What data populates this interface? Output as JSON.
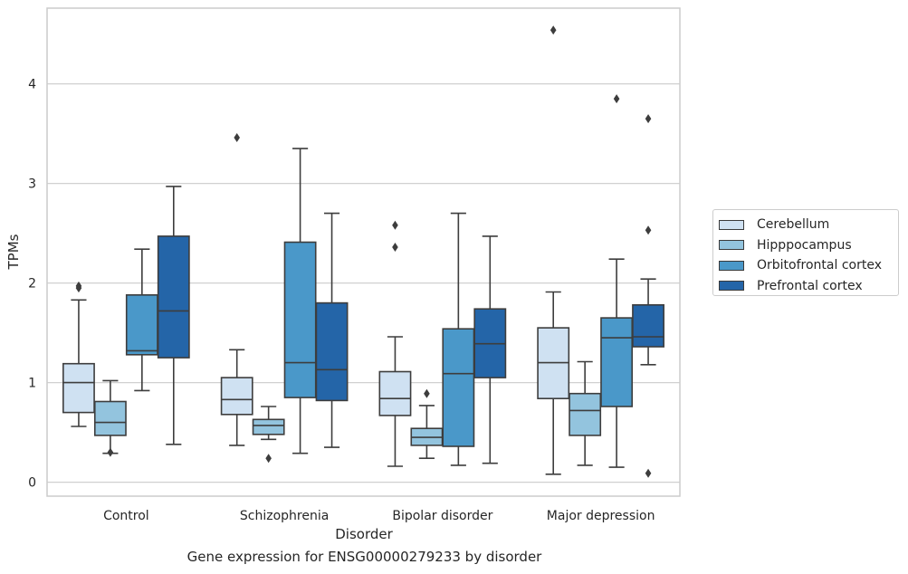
{
  "caption": "Gene expression for ENSG00000279233 by disorder",
  "chart_data": {
    "type": "box",
    "title": "",
    "xlabel": "Disorder",
    "ylabel": "TPMs",
    "ylim": [
      -0.14,
      4.76
    ],
    "yticks": [
      0,
      1,
      2,
      3,
      4
    ],
    "grid": true,
    "legend_position": "right",
    "categories": [
      "Control",
      "Schizophrenia",
      "Bipolar disorder",
      "Major depression"
    ],
    "series": [
      {
        "name": "Cerebellum",
        "color": "#cfe1f2",
        "boxes": [
          {
            "whisker_low": 0.56,
            "q1": 0.7,
            "median": 1.0,
            "q3": 1.19,
            "whisker_high": 1.83,
            "outliers": [
              1.95,
              1.97
            ]
          },
          {
            "whisker_low": 0.37,
            "q1": 0.68,
            "median": 0.83,
            "q3": 1.05,
            "whisker_high": 1.33,
            "outliers": [
              3.46
            ]
          },
          {
            "whisker_low": 0.16,
            "q1": 0.67,
            "median": 0.84,
            "q3": 1.11,
            "whisker_high": 1.46,
            "outliers": [
              2.36,
              2.58
            ]
          },
          {
            "whisker_low": 0.08,
            "q1": 0.84,
            "median": 1.2,
            "q3": 1.55,
            "whisker_high": 1.91,
            "outliers": [
              4.54
            ]
          }
        ]
      },
      {
        "name": "Hipppocampus",
        "color": "#93c4de",
        "boxes": [
          {
            "whisker_low": 0.29,
            "q1": 0.47,
            "median": 0.6,
            "q3": 0.81,
            "whisker_high": 1.02,
            "outliers": [
              0.3
            ]
          },
          {
            "whisker_low": 0.43,
            "q1": 0.48,
            "median": 0.57,
            "q3": 0.63,
            "whisker_high": 0.76,
            "outliers": [
              0.24
            ]
          },
          {
            "whisker_low": 0.24,
            "q1": 0.37,
            "median": 0.45,
            "q3": 0.54,
            "whisker_high": 0.77,
            "outliers": [
              0.89
            ]
          },
          {
            "whisker_low": 0.17,
            "q1": 0.47,
            "median": 0.72,
            "q3": 0.89,
            "whisker_high": 1.21,
            "outliers": []
          }
        ]
      },
      {
        "name": "Orbitofrontal cortex",
        "color": "#4a98c9",
        "boxes": [
          {
            "whisker_low": 0.92,
            "q1": 1.28,
            "median": 1.32,
            "q3": 1.88,
            "whisker_high": 2.34,
            "outliers": []
          },
          {
            "whisker_low": 0.29,
            "q1": 0.85,
            "median": 1.2,
            "q3": 2.41,
            "whisker_high": 3.35,
            "outliers": []
          },
          {
            "whisker_low": 0.17,
            "q1": 0.36,
            "median": 1.09,
            "q3": 1.54,
            "whisker_high": 2.7,
            "outliers": []
          },
          {
            "whisker_low": 0.15,
            "q1": 0.76,
            "median": 1.45,
            "q3": 1.65,
            "whisker_high": 2.24,
            "outliers": [
              3.85
            ]
          }
        ]
      },
      {
        "name": "Prefrontal cortex",
        "color": "#2465a8",
        "boxes": [
          {
            "whisker_low": 0.38,
            "q1": 1.25,
            "median": 1.72,
            "q3": 2.47,
            "whisker_high": 2.97,
            "outliers": []
          },
          {
            "whisker_low": 0.35,
            "q1": 0.82,
            "median": 1.13,
            "q3": 1.8,
            "whisker_high": 2.7,
            "outliers": []
          },
          {
            "whisker_low": 0.19,
            "q1": 1.05,
            "median": 1.39,
            "q3": 1.74,
            "whisker_high": 2.47,
            "outliers": []
          },
          {
            "whisker_low": 1.18,
            "q1": 1.36,
            "median": 1.46,
            "q3": 1.78,
            "whisker_high": 2.04,
            "outliers": [
              0.09,
              2.53,
              3.65
            ]
          }
        ]
      }
    ]
  }
}
